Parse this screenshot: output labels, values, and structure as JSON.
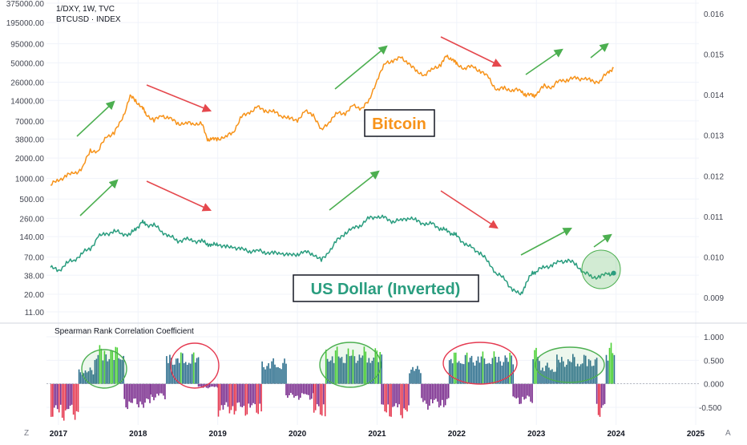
{
  "header": {
    "symbol_line": "1/DXY, 1W, TVC",
    "secondary_line": "BTCUSD · INDEX"
  },
  "corner": {
    "left": "Z",
    "right": "A"
  },
  "chart_data": [
    {
      "type": "line",
      "title": "1/DXY, 1W, TVC",
      "x_ticks": [
        "2017",
        "2018",
        "2019",
        "2020",
        "2021",
        "2022",
        "2023",
        "2024",
        "2025"
      ],
      "left_axis": {
        "scale": "log",
        "ticks": [
          "375000.00",
          "195000.00",
          "95000.00",
          "50000.00",
          "26000.00",
          "14000.00",
          "7000.00",
          "3800.00",
          "2000.00",
          "1000.00",
          "500.00",
          "260.00",
          "140.00",
          "70.00",
          "38.00",
          "20.00",
          "11.00"
        ]
      },
      "right_axis": {
        "ticks": [
          "0.016",
          "0.015",
          "0.014",
          "0.013",
          "0.012",
          "0.011",
          "0.010",
          "0.009"
        ]
      },
      "series": [
        {
          "name": "Bitcoin",
          "axis": "left",
          "color": "#f7931a",
          "x": [
            2016.9,
            2017.0,
            2017.1,
            2017.2,
            2017.3,
            2017.4,
            2017.5,
            2017.6,
            2017.7,
            2017.8,
            2017.9,
            2017.97,
            2018.05,
            2018.1,
            2018.2,
            2018.3,
            2018.4,
            2018.5,
            2018.6,
            2018.7,
            2018.8,
            2018.87,
            2018.93,
            2019.0,
            2019.1,
            2019.2,
            2019.3,
            2019.4,
            2019.5,
            2019.6,
            2019.7,
            2019.8,
            2019.9,
            2020.0,
            2020.1,
            2020.2,
            2020.3,
            2020.4,
            2020.5,
            2020.6,
            2020.7,
            2020.8,
            2020.9,
            2021.0,
            2021.1,
            2021.2,
            2021.3,
            2021.4,
            2021.5,
            2021.6,
            2021.7,
            2021.8,
            2021.87,
            2021.95,
            2022.0,
            2022.1,
            2022.2,
            2022.3,
            2022.4,
            2022.5,
            2022.6,
            2022.7,
            2022.8,
            2022.87,
            2022.95,
            2023.0,
            2023.1,
            2023.2,
            2023.3,
            2023.4,
            2023.5,
            2023.6,
            2023.7,
            2023.8,
            2023.9,
            2023.97
          ],
          "values": [
            800,
            950,
            1100,
            1200,
            1400,
            2600,
            2500,
            4200,
            4600,
            7500,
            16000,
            14000,
            11000,
            9000,
            7000,
            8500,
            7500,
            6500,
            6400,
            6500,
            6300,
            3800,
            3700,
            3900,
            4000,
            5000,
            8000,
            9500,
            11000,
            10000,
            9500,
            8500,
            7500,
            7300,
            9500,
            8800,
            5000,
            7000,
            9000,
            9200,
            11500,
            10800,
            13500,
            29000,
            48000,
            55000,
            58000,
            50000,
            36000,
            34000,
            40000,
            48000,
            61000,
            57000,
            47000,
            42000,
            44000,
            38000,
            30000,
            20000,
            21000,
            20000,
            19500,
            17000,
            16500,
            17000,
            23000,
            22000,
            28000,
            28000,
            30000,
            29000,
            27000,
            26500,
            37000,
            42000
          ]
        },
        {
          "name": "US Dollar (Inverted)",
          "axis": "right",
          "color": "#2a9d7f",
          "x": [
            2016.9,
            2017.0,
            2017.1,
            2017.2,
            2017.3,
            2017.4,
            2017.5,
            2017.6,
            2017.7,
            2017.8,
            2017.9,
            2017.97,
            2018.05,
            2018.1,
            2018.2,
            2018.3,
            2018.4,
            2018.5,
            2018.6,
            2018.7,
            2018.8,
            2018.87,
            2018.93,
            2019.0,
            2019.1,
            2019.2,
            2019.3,
            2019.4,
            2019.5,
            2019.6,
            2019.7,
            2019.8,
            2019.9,
            2020.0,
            2020.1,
            2020.2,
            2020.3,
            2020.4,
            2020.5,
            2020.6,
            2020.7,
            2020.8,
            2020.9,
            2021.0,
            2021.1,
            2021.2,
            2021.3,
            2021.4,
            2021.5,
            2021.6,
            2021.7,
            2021.8,
            2021.87,
            2021.95,
            2022.0,
            2022.1,
            2022.2,
            2022.3,
            2022.4,
            2022.5,
            2022.6,
            2022.7,
            2022.8,
            2022.87,
            2022.95,
            2023.0,
            2023.1,
            2023.2,
            2023.3,
            2023.4,
            2023.5,
            2023.6,
            2023.7,
            2023.8,
            2023.9,
            2023.97
          ],
          "values": [
            0.00975,
            0.00965,
            0.00985,
            0.00992,
            0.0101,
            0.0102,
            0.0105,
            0.01057,
            0.01063,
            0.01058,
            0.01055,
            0.0107,
            0.01085,
            0.0108,
            0.01078,
            0.01063,
            0.0105,
            0.0104,
            0.01043,
            0.0104,
            0.01038,
            0.01033,
            0.01028,
            0.01033,
            0.01023,
            0.01025,
            0.01018,
            0.01015,
            0.01015,
            0.01012,
            0.01008,
            0.0101,
            0.01003,
            0.01008,
            0.01012,
            0.01008,
            0.0099,
            0.01015,
            0.0104,
            0.0106,
            0.0107,
            0.0108,
            0.01095,
            0.011,
            0.01095,
            0.01088,
            0.0109,
            0.01098,
            0.01088,
            0.01082,
            0.0108,
            0.0107,
            0.01065,
            0.01058,
            0.01052,
            0.01033,
            0.0102,
            0.0101,
            0.00985,
            0.0096,
            0.00945,
            0.0092,
            0.00905,
            0.00935,
            0.0096,
            0.00965,
            0.00975,
            0.0098,
            0.00988,
            0.00992,
            0.0098,
            0.00962,
            0.0095,
            0.00952,
            0.00958,
            0.0096
          ]
        }
      ],
      "annotations": [
        {
          "text": "Bitcoin",
          "color": "#f7931a"
        },
        {
          "text": "US Dollar (Inverted)",
          "color": "#2a9d7f"
        }
      ],
      "trend_arrows": [
        {
          "series": "Bitcoin",
          "direction": "up",
          "color": "#4caf50"
        },
        {
          "series": "Bitcoin",
          "direction": "down",
          "color": "#e5484d"
        },
        {
          "series": "Bitcoin",
          "direction": "up",
          "color": "#4caf50"
        },
        {
          "series": "Bitcoin",
          "direction": "down",
          "color": "#e5484d"
        },
        {
          "series": "Bitcoin",
          "direction": "up",
          "color": "#4caf50"
        },
        {
          "series": "Bitcoin",
          "direction": "up",
          "color": "#4caf50"
        },
        {
          "series": "US Dollar (Inverted)",
          "direction": "up",
          "color": "#4caf50"
        },
        {
          "series": "US Dollar (Inverted)",
          "direction": "down",
          "color": "#e5484d"
        },
        {
          "series": "US Dollar (Inverted)",
          "direction": "up",
          "color": "#4caf50"
        },
        {
          "series": "US Dollar (Inverted)",
          "direction": "down",
          "color": "#e5484d"
        },
        {
          "series": "US Dollar (Inverted)",
          "direction": "up",
          "color": "#4caf50"
        },
        {
          "series": "US Dollar (Inverted)",
          "direction": "up",
          "color": "#4caf50"
        }
      ],
      "grid": true
    },
    {
      "type": "bar",
      "title": "Spearman Rank Correlation Coefficient",
      "right_axis": {
        "ticks": [
          "1.000",
          "0.500",
          "0.000",
          "-0.500"
        ],
        "ylim": [
          -0.85,
          1.05
        ]
      },
      "x_ticks": [
        "2017",
        "2018",
        "2019",
        "2020",
        "2021",
        "2022",
        "2023",
        "2024",
        "2025"
      ],
      "colors": {
        "strong_positive": "#4cd137",
        "positive": "#2e6f8e",
        "negative": "#7b2d8e",
        "strong_negative": "#e53950"
      },
      "segments": [
        {
          "start": 2016.9,
          "end": 2017.25,
          "value": -0.8
        },
        {
          "start": 2017.25,
          "end": 2017.45,
          "value": 0.35
        },
        {
          "start": 2017.45,
          "end": 2017.82,
          "value": 0.85
        },
        {
          "start": 2017.82,
          "end": 2018.15,
          "value": -0.55
        },
        {
          "start": 2018.15,
          "end": 2018.35,
          "value": -0.35
        },
        {
          "start": 2018.35,
          "end": 2018.75,
          "value": 0.7
        },
        {
          "start": 2018.75,
          "end": 2019.0,
          "value": -0.1
        },
        {
          "start": 2019.0,
          "end": 2019.55,
          "value": -0.7
        },
        {
          "start": 2019.55,
          "end": 2019.85,
          "value": 0.55
        },
        {
          "start": 2019.85,
          "end": 2020.2,
          "value": -0.35
        },
        {
          "start": 2020.2,
          "end": 2020.35,
          "value": -0.78
        },
        {
          "start": 2020.35,
          "end": 2021.05,
          "value": 0.8
        },
        {
          "start": 2021.05,
          "end": 2021.4,
          "value": -0.75
        },
        {
          "start": 2021.4,
          "end": 2021.55,
          "value": 0.4
        },
        {
          "start": 2021.55,
          "end": 2021.9,
          "value": -0.55
        },
        {
          "start": 2021.9,
          "end": 2022.7,
          "value": 0.7
        },
        {
          "start": 2022.7,
          "end": 2022.95,
          "value": -0.45
        },
        {
          "start": 2022.95,
          "end": 2023.05,
          "value": 0.85
        },
        {
          "start": 2023.05,
          "end": 2023.25,
          "value": 0.45
        },
        {
          "start": 2023.25,
          "end": 2023.75,
          "value": 0.65
        },
        {
          "start": 2023.75,
          "end": 2023.87,
          "value": -0.75
        },
        {
          "start": 2023.87,
          "end": 2023.97,
          "value": 0.88
        }
      ],
      "ellipses": [
        {
          "color": "#4caf50"
        },
        {
          "color": "#e53950"
        },
        {
          "color": "#4caf50"
        },
        {
          "color": "#e53950"
        },
        {
          "color": "#4caf50"
        }
      ],
      "grid": true
    }
  ]
}
